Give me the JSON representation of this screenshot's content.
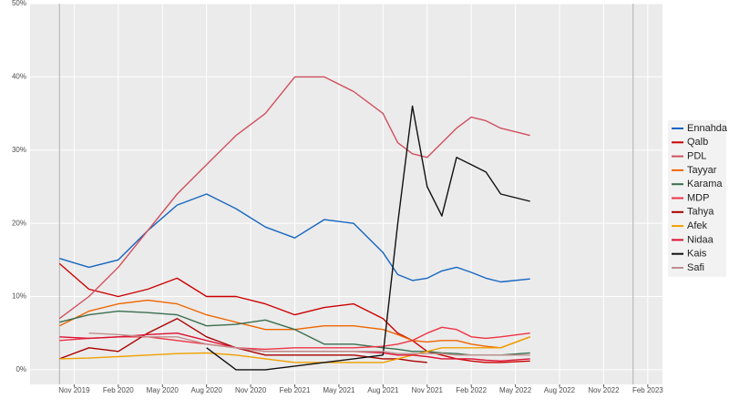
{
  "chart_data": {
    "type": "line",
    "x": [
      "2019-10",
      "2019-12",
      "2020-02",
      "2020-04",
      "2020-06",
      "2020-08",
      "2020-10",
      "2020-12",
      "2021-02",
      "2021-04",
      "2021-06",
      "2021-08",
      "2021-09",
      "2021-10",
      "2021-11",
      "2021-12",
      "2022-01",
      "2022-02",
      "2022-03",
      "2022-04",
      "2022-06"
    ],
    "series": [
      {
        "name": "Ennahda",
        "color": "#1565c0",
        "values": [
          15.2,
          14,
          15,
          19,
          22.5,
          24,
          22,
          19.5,
          18,
          20.5,
          20,
          16,
          13,
          12.2,
          12.5,
          13.5,
          14,
          13.3,
          12.5,
          12,
          12.4
        ]
      },
      {
        "name": "Qalb",
        "color": "#cc0000",
        "values": [
          14.5,
          11,
          10,
          11,
          12.5,
          10,
          10,
          9,
          7.5,
          8.5,
          9,
          7,
          5,
          4,
          2.5,
          2,
          1.5,
          1.2,
          1,
          1,
          1.2
        ]
      },
      {
        "name": "PDL",
        "color": "#d0505e",
        "values": [
          7,
          10,
          14,
          19,
          24,
          28,
          32,
          35,
          40,
          40,
          38,
          35,
          31,
          29.5,
          29,
          31,
          33,
          34.5,
          34,
          33,
          32
        ]
      },
      {
        "name": "Tayyar",
        "color": "#ee6600",
        "values": [
          6,
          8,
          9,
          9.5,
          9,
          7.5,
          6.5,
          5.5,
          5.5,
          6,
          6,
          5.5,
          4.8,
          4,
          3.8,
          4,
          4,
          3.5,
          3.2,
          3,
          4.5
        ]
      },
      {
        "name": "Karama",
        "color": "#3a6e4f",
        "values": [
          6.5,
          7.5,
          8,
          7.8,
          7.5,
          6,
          6.2,
          6.8,
          5.5,
          3.5,
          3.5,
          3,
          2.8,
          2.5,
          2.5,
          2.3,
          2.2,
          2,
          2,
          2,
          2.3
        ]
      },
      {
        "name": "MDP",
        "color": "#ee3344",
        "values": [
          4,
          4.3,
          4.5,
          4.5,
          4,
          3.5,
          3,
          2.8,
          3,
          3,
          3,
          3.2,
          3.5,
          4,
          5,
          5.8,
          5.5,
          4.5,
          4.3,
          4.5,
          5
        ]
      },
      {
        "name": "Tahya",
        "color": "#aa0000",
        "values": [
          1.5,
          3,
          2.5,
          5,
          7,
          4.5,
          3,
          2,
          2,
          2,
          2,
          1.5,
          1.5,
          1.2,
          1,
          null,
          null,
          null,
          null,
          null,
          null
        ]
      },
      {
        "name": "Afek",
        "color": "#f0a000",
        "values": [
          1.5,
          1.6,
          1.8,
          2,
          2.2,
          2.3,
          2,
          1.5,
          1,
          1,
          1,
          1,
          1.5,
          2,
          2.5,
          3,
          3,
          3,
          3,
          3,
          4.5
        ]
      },
      {
        "name": "Nidaa",
        "color": "#dd1133",
        "values": [
          4.5,
          4.3,
          4.5,
          4.8,
          5,
          4,
          3,
          2.5,
          2.5,
          2.5,
          2.5,
          2.3,
          2,
          2,
          1.8,
          1.5,
          1.5,
          1.5,
          1.3,
          1.2,
          1.5
        ]
      },
      {
        "name": "Kais",
        "color": "#111111",
        "values": [
          null,
          null,
          null,
          null,
          null,
          3,
          0,
          0,
          0.5,
          1,
          1.5,
          2,
          20,
          36,
          25,
          21,
          29,
          28,
          27,
          24,
          23
        ]
      },
      {
        "name": "Safi",
        "color": "#c09090",
        "values": [
          null,
          5,
          4.8,
          4.5,
          4.5,
          3.5,
          3,
          2.5,
          2.5,
          2.5,
          2.5,
          2.5,
          2.2,
          2.2,
          2.2,
          2.2,
          2,
          2,
          2,
          2,
          2
        ]
      }
    ],
    "xlim": [
      "2019-08",
      "2023-03"
    ],
    "xticks": [
      {
        "value": "2019-11",
        "label": "Nov 2019"
      },
      {
        "value": "2020-02",
        "label": "Feb 2020"
      },
      {
        "value": "2020-05",
        "label": "May 2020"
      },
      {
        "value": "2020-08",
        "label": "Aug 2020"
      },
      {
        "value": "2020-11",
        "label": "Nov 2020"
      },
      {
        "value": "2021-02",
        "label": "Feb 2021"
      },
      {
        "value": "2021-05",
        "label": "May 2021"
      },
      {
        "value": "2021-08",
        "label": "Aug 2021"
      },
      {
        "value": "2021-11",
        "label": "Nov 2021"
      },
      {
        "value": "2022-02",
        "label": "Feb 2022"
      },
      {
        "value": "2022-05",
        "label": "May 2022"
      },
      {
        "value": "2022-08",
        "label": "Aug 2022"
      },
      {
        "value": "2022-11",
        "label": "Nov 2022"
      },
      {
        "value": "2023-02",
        "label": "Feb 2023"
      }
    ],
    "ylim": [
      -2,
      50
    ],
    "yticks": [
      {
        "value": 0,
        "label": "0%"
      },
      {
        "value": 10,
        "label": "10%"
      },
      {
        "value": 20,
        "label": "20%"
      },
      {
        "value": 30,
        "label": "30%"
      },
      {
        "value": 40,
        "label": "40%"
      },
      {
        "value": 50,
        "label": "50%"
      }
    ],
    "reference_dates": [
      "2019-10",
      "2023-01"
    ],
    "grid": true
  }
}
